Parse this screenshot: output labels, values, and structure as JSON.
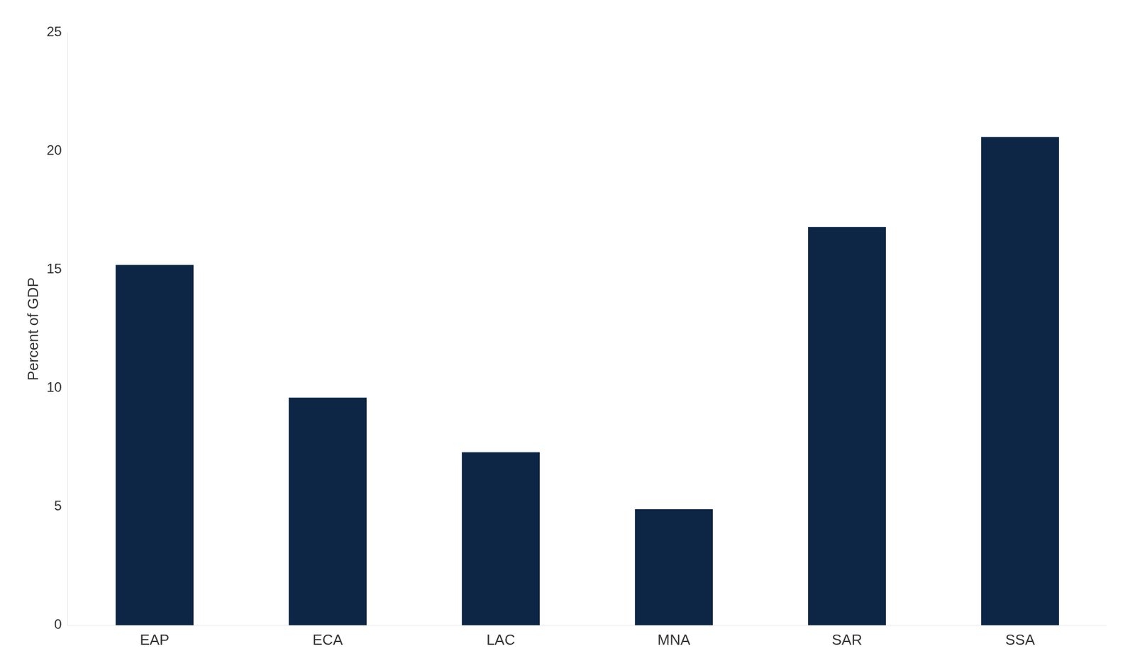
{
  "chart_data": {
    "type": "bar",
    "ylabel": "Percent of GDP",
    "categories": [
      "EAP",
      "ECA",
      "LAC",
      "MNA",
      "SAR",
      "SSA"
    ],
    "values": [
      15.2,
      9.6,
      7.3,
      4.9,
      16.8,
      20.6
    ],
    "color": "#0d2645",
    "ylim": [
      0,
      25
    ],
    "yticks": [
      0,
      5,
      10,
      15,
      20,
      25
    ],
    "grid": false
  }
}
